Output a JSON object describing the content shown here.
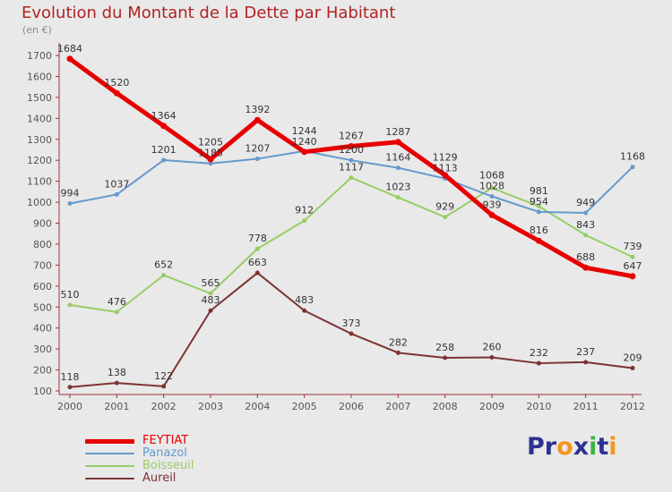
{
  "chart_data": {
    "type": "line",
    "title": "Evolution du Montant de la Dette par Habitant",
    "subtitle": "(en €)",
    "xlabel": "",
    "ylabel": "",
    "x": [
      2000,
      2001,
      2002,
      2003,
      2004,
      2005,
      2006,
      2007,
      2008,
      2009,
      2010,
      2011,
      2012
    ],
    "series": [
      {
        "name": "FEYTIAT",
        "color": "#e80000",
        "width": 5,
        "values": [
          1684,
          1520,
          1364,
          1205,
          1392,
          1240,
          1267,
          1287,
          1129,
          939,
          816,
          688,
          647
        ]
      },
      {
        "name": "Panazol",
        "color": "#6699cc",
        "width": 2,
        "values": [
          994,
          1037,
          1201,
          1185,
          1207,
          1244,
          1200,
          1164,
          1113,
          1028,
          954,
          949,
          1168
        ]
      },
      {
        "name": "Boisseuil",
        "color": "#99cc66",
        "width": 2,
        "values": [
          510,
          476,
          652,
          565,
          778,
          912,
          1117,
          1023,
          929,
          1068,
          981,
          843,
          739
        ]
      },
      {
        "name": "Aureil",
        "color": "#7e3333",
        "width": 2,
        "values": [
          118,
          138,
          122,
          483,
          663,
          483,
          373,
          282,
          258,
          260,
          232,
          237,
          209
        ]
      }
    ],
    "ylim": [
      100,
      1700
    ],
    "ytick_step": 100,
    "grid": false,
    "legend_position": "bottom-left",
    "axis_color": "#993333",
    "tick_label_color": "#555555",
    "point_label_color": "#333333",
    "background": "#e9e9e9",
    "title_color": "#b22222"
  },
  "logo": {
    "text": "Proxiti",
    "letters": [
      {
        "ch": "P",
        "color": "#2e3192"
      },
      {
        "ch": "r",
        "color": "#2e3192"
      },
      {
        "ch": "o",
        "color": "#f7941d"
      },
      {
        "ch": "x",
        "color": "#2e3192"
      },
      {
        "ch": "i",
        "color": "#39b54a"
      },
      {
        "ch": "t",
        "color": "#2e3192"
      },
      {
        "ch": "i",
        "color": "#f7941d"
      }
    ]
  }
}
